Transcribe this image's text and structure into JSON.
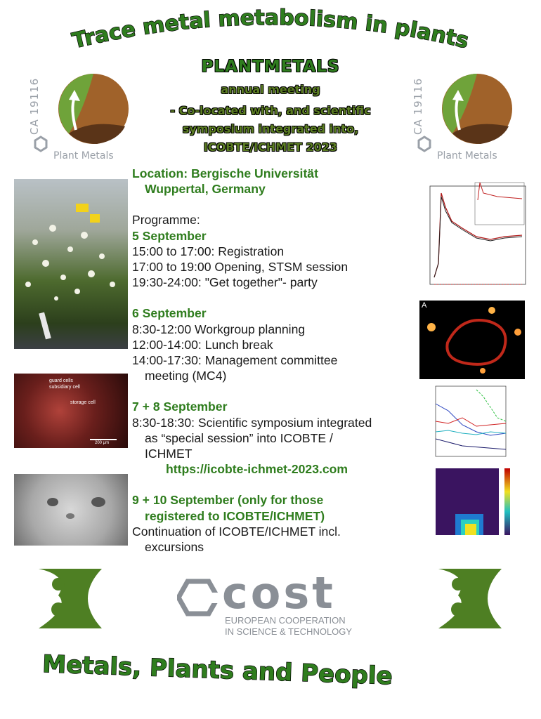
{
  "header": {
    "arc_title": "Trace metal metabolism in plants",
    "project": "PLANTMETALS",
    "subtitle_lines": [
      "annual meeting",
      "- Co-located with, and scientific",
      "symposium integrated into,",
      "ICOBTE/ICHMET 2023"
    ]
  },
  "logos": {
    "action_code": "CA 19116",
    "action_name": "Plant Metals",
    "cost_word": "cost",
    "cost_tagline_1": "EUROPEAN COOPERATION",
    "cost_tagline_2": "IN SCIENCE & TECHNOLOGY"
  },
  "location": {
    "line1": "Location: Bergische Universität",
    "line2": "Wuppertal, Germany"
  },
  "programme_label": "Programme:",
  "days": [
    {
      "heading": "5 September",
      "items": [
        "15:00 to 17:00: Registration",
        "17:00 to 19:00 Opening, STSM session",
        "19:30-24:00: \"Get together\"- party"
      ]
    },
    {
      "heading": "6 September",
      "items": [
        "8:30-12:00 Workgroup planning",
        "12:00-14:00: Lunch break",
        "14:00-17:30: Management committee",
        "meeting (MC4)"
      ]
    },
    {
      "heading": "7 + 8 September",
      "items": [
        "8:30-18:30: Scientific symposium integrated",
        "as “special session” into ICOBTE /",
        "ICHMET"
      ],
      "link": "https://icobte-ichmet-2023.com"
    },
    {
      "heading_1": "9 + 10 September (only for those",
      "heading_2": "registered to ICOBTE/ICHMET)",
      "items": [
        "Continuation of ICOBTE/ICHMET incl.",
        "excursions"
      ]
    }
  ],
  "image_labels": {
    "micrograph_1": "guard cells",
    "micrograph_2": "subsidiary cell",
    "micrograph_3": "storage cell",
    "micrograph_scale": "200 µm",
    "fluor_panel": "A"
  },
  "footer_title": "Metals, Plants and People",
  "colors": {
    "green": "#2f7d1e",
    "brown": "#a0622a",
    "logo_green": "#4e7f23",
    "gray": "#9aa0a8"
  }
}
